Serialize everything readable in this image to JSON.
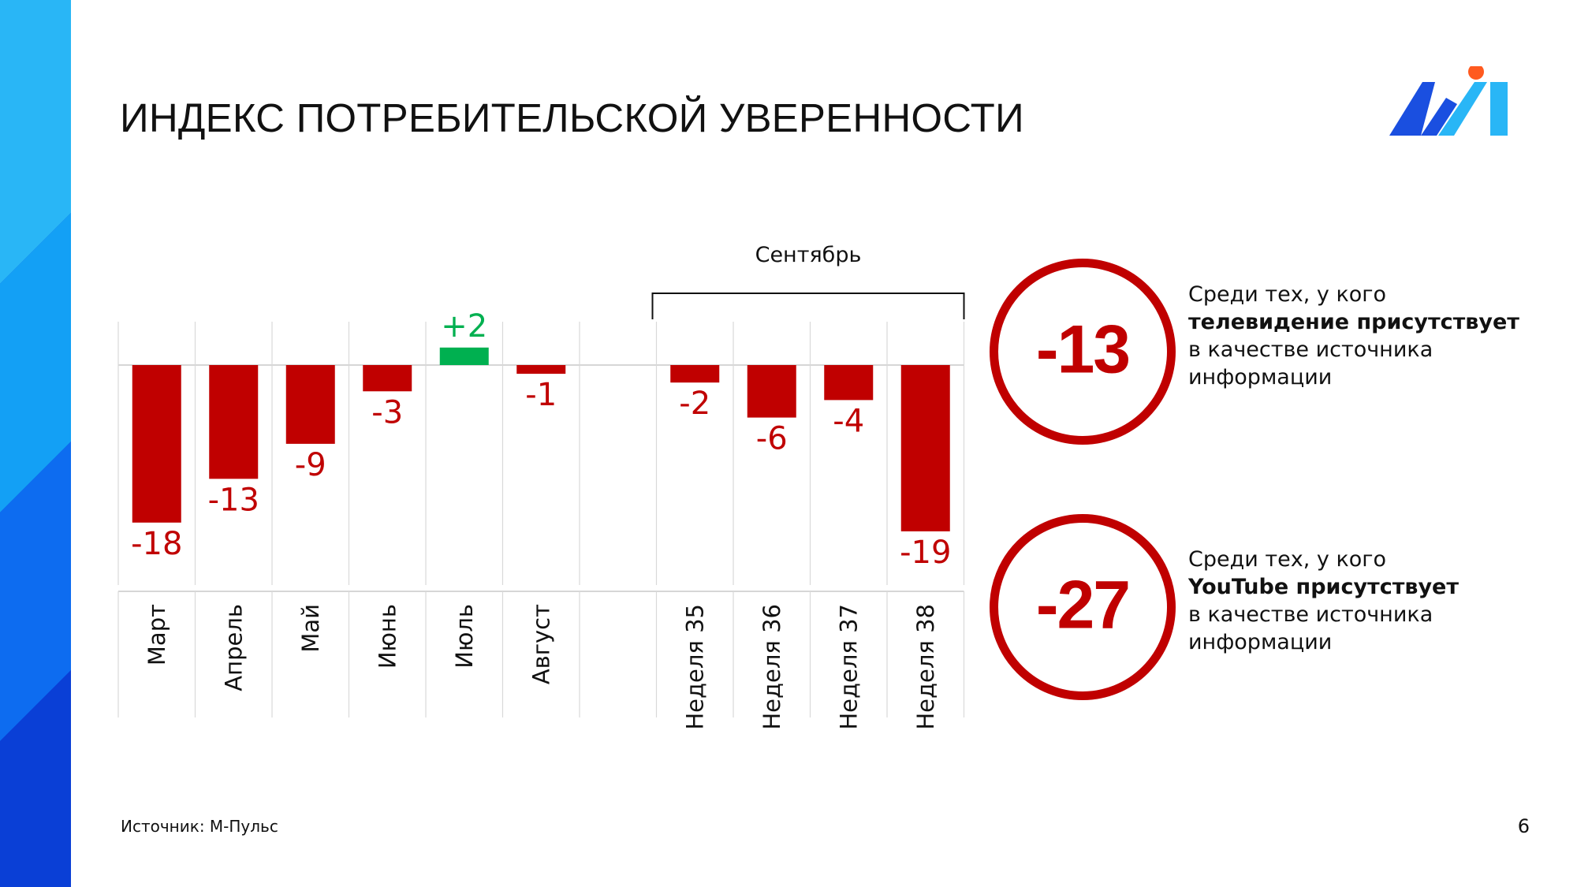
{
  "slide": {
    "title": "ИНДЕКС ПОТРЕБИТЕЛЬСКОЙ УВЕРЕННОСТИ",
    "source": "Источник: М-Пульс",
    "page_number": "6"
  },
  "colors": {
    "negative": "#c00000",
    "positive": "#00b050",
    "grid": "#d9d9d9",
    "band_light": "#29b6f6",
    "band_dark": "#0a3fd6",
    "logo_blue": "#1a4fe0",
    "logo_cyan": "#29b6f6",
    "logo_dot": "#ff5a1f"
  },
  "chart_data": {
    "type": "bar",
    "title": "",
    "xlabel": "",
    "ylabel": "",
    "ylim": [
      -19,
      2
    ],
    "group_label": "Сентябрь",
    "grid": "vertical separators",
    "categories": [
      "Март",
      "Апрель",
      "Май",
      "Июнь",
      "Июль",
      "Август",
      "",
      "Неделя 35",
      "Неделя 36",
      "Неделя 37",
      "Неделя 38"
    ],
    "values": [
      -18,
      -13,
      -9,
      -3,
      2,
      -1,
      null,
      -2,
      -6,
      -4,
      -19
    ],
    "data_labels": [
      "-18",
      "-13",
      "-9",
      "-3",
      "+2",
      "-1",
      "",
      "-2",
      "-6",
      "-4",
      "-19"
    ],
    "group": {
      "label": "Сентябрь",
      "from_index": 7,
      "to_index": 10
    }
  },
  "stats": [
    {
      "value": "-13",
      "line1": "Среди тех, у кого",
      "line2": "телевидение присутствует",
      "line3": "в качестве источника",
      "line4": "информации"
    },
    {
      "value": "-27",
      "line1": "Среди тех, у кого",
      "line2": "YouTube присутствует",
      "line3": "в качестве источника",
      "line4": "информации"
    }
  ]
}
